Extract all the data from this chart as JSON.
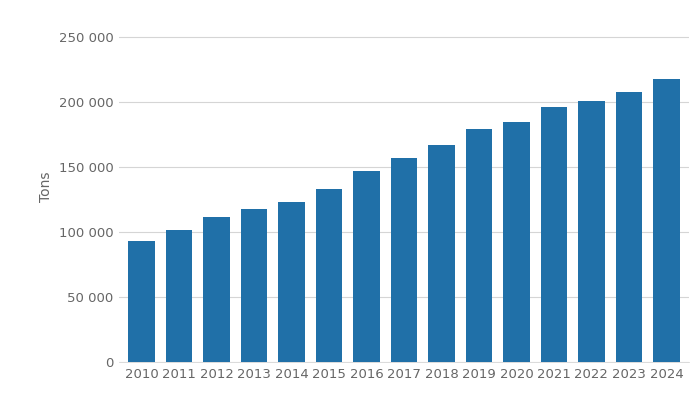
{
  "years": [
    2010,
    2011,
    2012,
    2013,
    2014,
    2015,
    2016,
    2017,
    2018,
    2019,
    2020,
    2021,
    2022,
    2023,
    2024
  ],
  "values": [
    93000,
    102000,
    112000,
    118000,
    123000,
    133000,
    147000,
    157000,
    167000,
    179000,
    185000,
    196000,
    201000,
    208000,
    218000
  ],
  "bar_color": "#2070a8",
  "ylabel": "Tons",
  "ylim": [
    0,
    270000
  ],
  "yticks": [
    0,
    50000,
    100000,
    150000,
    200000,
    250000
  ],
  "ytick_labels": [
    "0",
    "50 000",
    "100 000",
    "150 000",
    "200 000",
    "250 000"
  ],
  "background_color": "#ffffff",
  "grid_color": "#d5d5d5",
  "bar_width": 0.7,
  "ylabel_fontsize": 10,
  "tick_fontsize": 9.5
}
